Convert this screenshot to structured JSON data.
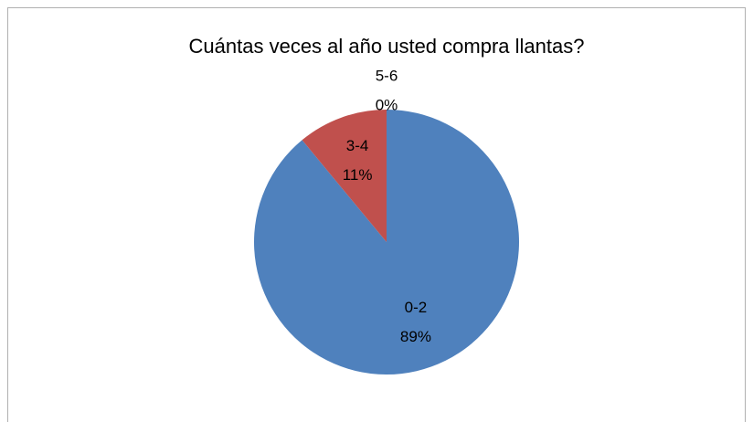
{
  "chart_data": {
    "type": "pie",
    "title": "Cuántas veces al año usted compra llantas?",
    "categories": [
      "0-2",
      "3-4",
      "5-6"
    ],
    "values": [
      89,
      11,
      0
    ],
    "value_labels": [
      "89%",
      "11%",
      "0%"
    ],
    "colors": [
      "#4f81bd",
      "#c0504d",
      "#9bbb59"
    ]
  }
}
